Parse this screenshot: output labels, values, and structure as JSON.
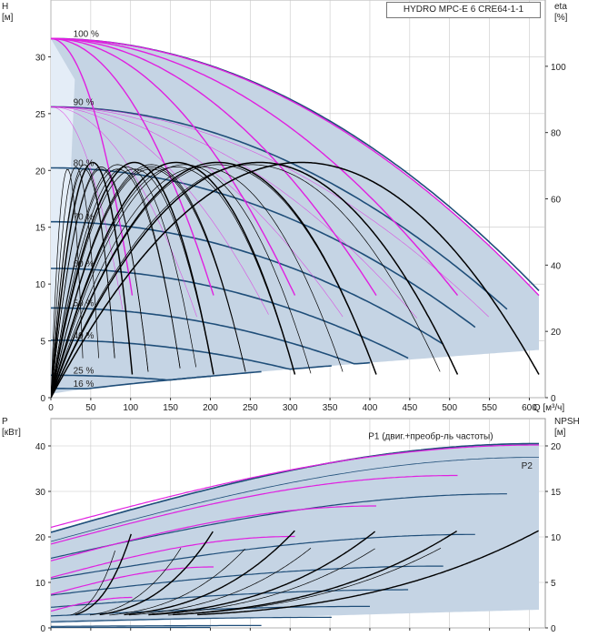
{
  "title": "HYDRO MPC-E 6 CRE64-1-1",
  "colors": {
    "band_fill": "#c5d4e4",
    "band_light": "#e4edf7",
    "pump_curve": "#1f4e79",
    "magenta": "#e020e0",
    "eff_curve": "#000000",
    "grid": "#c8c8c8"
  },
  "chart_data": [
    {
      "type": "line",
      "name": "head-efficiency",
      "xlabel": "Q [м³/ч]",
      "ylabel_top": "H",
      "ylabel_unit": "[м]",
      "y2label_top": "eta",
      "y2label_unit": "[%]",
      "xlim": [
        0,
        620
      ],
      "ylim": [
        0,
        35
      ],
      "y2lim": [
        0,
        120
      ],
      "xticks": [
        "0",
        "50",
        "100",
        "150",
        "200",
        "250",
        "300",
        "350",
        "400",
        "450",
        "500",
        "550",
        "600"
      ],
      "xtick_values": [
        0,
        50,
        100,
        150,
        200,
        250,
        300,
        350,
        400,
        450,
        500,
        550,
        600
      ],
      "yticks": [
        "0",
        "5",
        "10",
        "15",
        "20",
        "25",
        "30"
      ],
      "ytick_values": [
        0,
        5,
        10,
        15,
        20,
        25,
        30
      ],
      "y2ticks": [
        "0",
        "20",
        "40",
        "60",
        "80",
        "100"
      ],
      "y2tick_values": [
        0,
        20,
        40,
        60,
        80,
        100
      ],
      "grid": true,
      "speed_labels": [
        {
          "text": "100 %",
          "speed": 1.0
        },
        {
          "text": "90 %",
          "speed": 0.9
        },
        {
          "text": "80 %",
          "speed": 0.8
        },
        {
          "text": "70 %",
          "speed": 0.7
        },
        {
          "text": "60 %",
          "speed": 0.6
        },
        {
          "text": "50 %",
          "speed": 0.5
        },
        {
          "text": "40 %",
          "speed": 0.4
        },
        {
          "text": "25 %",
          "speed": 0.25
        },
        {
          "text": "16 %",
          "speed": 0.16
        }
      ],
      "speed_curve_values": [
        1.0,
        0.9,
        0.8,
        0.7,
        0.6,
        0.5,
        0.4,
        0.25,
        0.16
      ],
      "shutoff_head_100": 31.6,
      "max_flow_per_pump": 102,
      "pump_counts": [
        1,
        2,
        3,
        4,
        5,
        6
      ],
      "band_max_point": {
        "x": 612,
        "y": 9
      },
      "band_min_point": {
        "x": 612,
        "y": 4.2
      },
      "eff_peak": 71
    },
    {
      "type": "line",
      "name": "power-npsh",
      "ylabel_top": "P",
      "ylabel_unit": "[кВт]",
      "y2label_top": "NPSH",
      "y2label_unit": "[м]",
      "xlim": [
        0,
        620
      ],
      "ylim": [
        0,
        46
      ],
      "y2lim": [
        0,
        23
      ],
      "yticks": [
        "0",
        "10",
        "20",
        "30",
        "40"
      ],
      "ytick_values": [
        0,
        10,
        20,
        30,
        40
      ],
      "y2ticks": [
        "0",
        "5",
        "10",
        "15",
        "20"
      ],
      "y2tick_values": [
        0,
        5,
        10,
        15,
        20
      ],
      "grid": true,
      "annotations": [
        {
          "text": "P1 (двиг.+преобр-ль частоты)"
        },
        {
          "text": "P2"
        }
      ],
      "p1_max_curve": {
        "p0": 21.0,
        "p1": 40.5
      },
      "p2_max_curve": {
        "p0": 19.0,
        "p1": 37.5
      },
      "p1_min_curve": {
        "p0": 1.0,
        "p1": 4.0
      }
    }
  ]
}
